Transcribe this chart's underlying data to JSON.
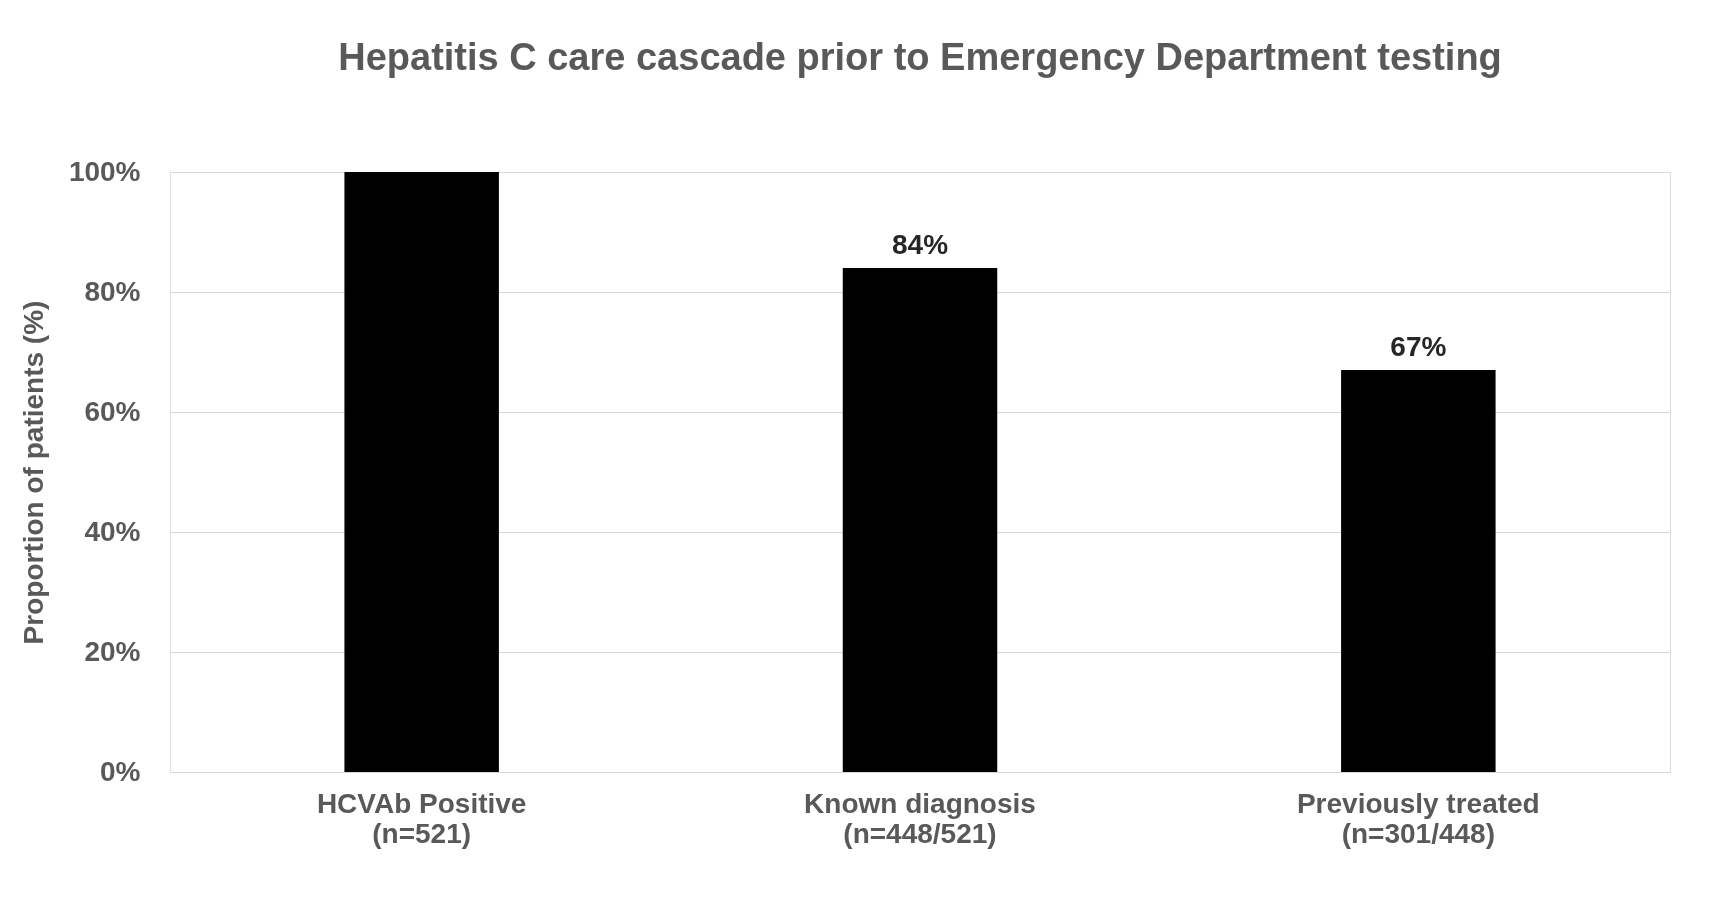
{
  "chart_data": {
    "type": "bar",
    "title": "Hepatitis C care cascade prior to Emergency Department testing",
    "ylabel": "Proportion of patients (%)",
    "categories": [
      "HCVAb Positive\n(n=521)",
      "Known diagnosis\n(n=448/521)",
      "Previously treated\n(n=301/448)"
    ],
    "values": [
      100,
      84,
      67
    ],
    "color": "#000000",
    "value_labels": [
      null,
      "84%",
      "67%"
    ],
    "ylim": [
      0,
      100
    ],
    "yticks": [
      {
        "value": 0,
        "label": "0%"
      },
      {
        "value": 20,
        "label": "20%"
      },
      {
        "value": 40,
        "label": "40%"
      },
      {
        "value": 60,
        "label": "60%"
      },
      {
        "value": 80,
        "label": "80%"
      },
      {
        "value": 100,
        "label": "100%"
      }
    ],
    "grid": "y"
  }
}
